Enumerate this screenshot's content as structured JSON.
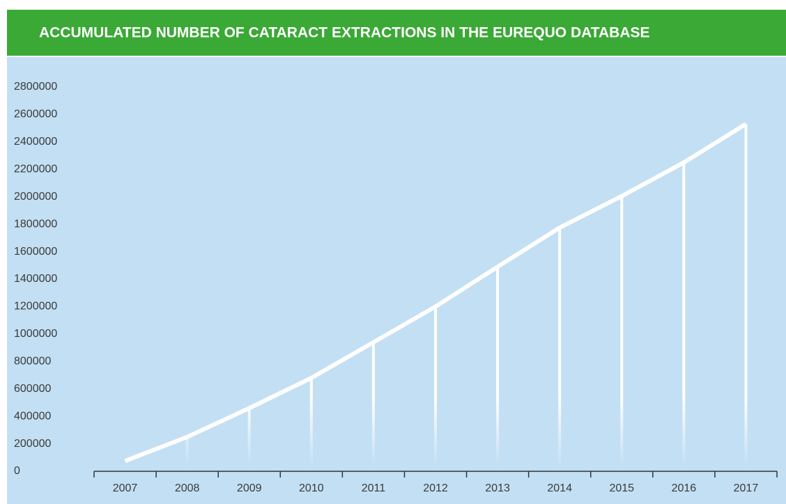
{
  "chart_data": {
    "type": "line",
    "title": "ACCUMULATED NUMBER OF CATARACT EXTRACTIONS IN THE EUREQUO DATABASE",
    "categories": [
      "2007",
      "2008",
      "2009",
      "2010",
      "2011",
      "2012",
      "2013",
      "2014",
      "2015",
      "2016",
      "2017"
    ],
    "values": [
      75000,
      250000,
      460000,
      680000,
      940000,
      1200000,
      1490000,
      1775000,
      2005000,
      2250000,
      2530000
    ],
    "color": "#ffffff",
    "ylim": [
      0,
      2800000
    ],
    "yticks": [
      0,
      200000,
      400000,
      600000,
      800000,
      1000000,
      1200000,
      1400000,
      1600000,
      1800000,
      2000000,
      2200000,
      2400000,
      2600000,
      2800000
    ],
    "drop_lines": true
  }
}
